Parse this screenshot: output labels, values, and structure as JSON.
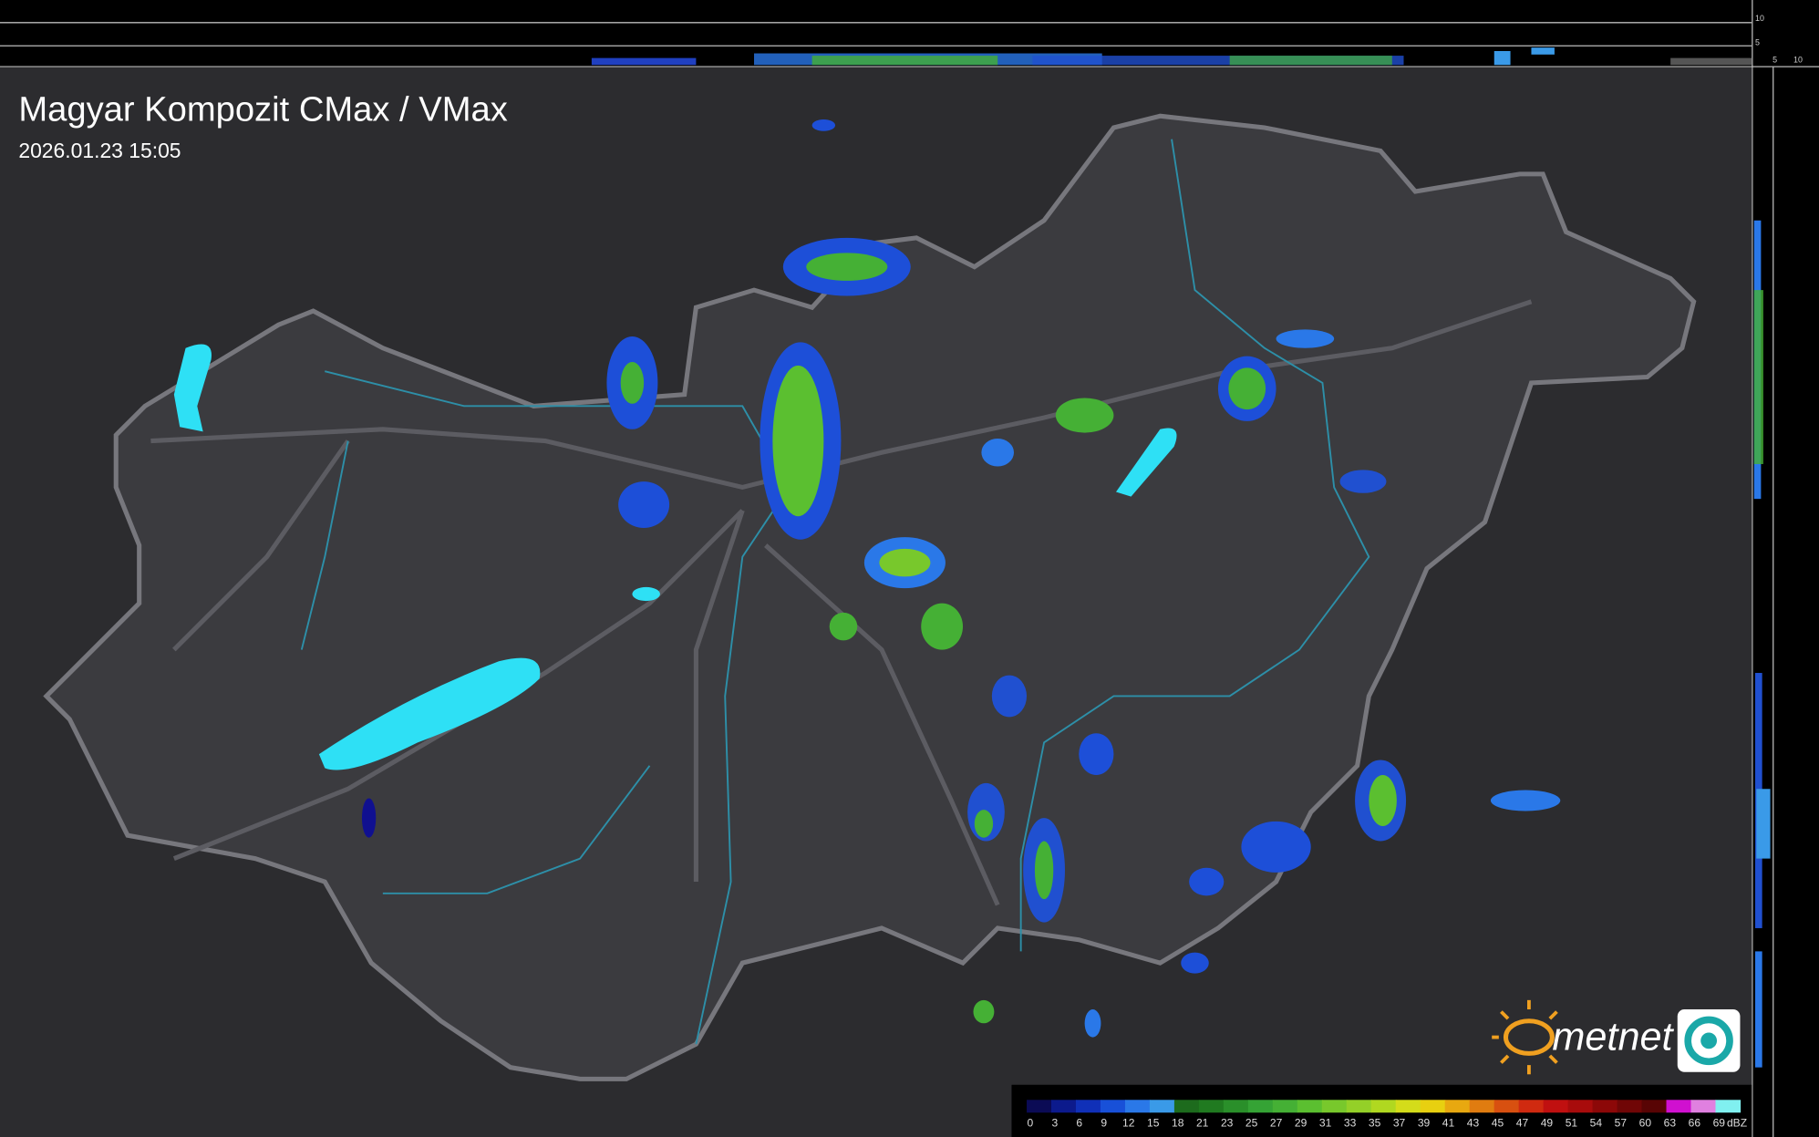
{
  "header": {
    "title": "Magyar Kompozit CMax / VMax",
    "timestamp": "2026.01.23 15:05"
  },
  "side_profile": {
    "top_labels": [
      "10",
      "5"
    ],
    "right_labels": [
      "5",
      "10"
    ]
  },
  "logo": {
    "text": "metnet"
  },
  "legend": {
    "unit": "dBZ",
    "labels": [
      "0",
      "3",
      "6",
      "9",
      "12",
      "15",
      "18",
      "21",
      "23",
      "25",
      "27",
      "29",
      "31",
      "33",
      "35",
      "37",
      "39",
      "41",
      "43",
      "45",
      "47",
      "49",
      "51",
      "54",
      "57",
      "60",
      "63",
      "66",
      "69"
    ],
    "colors": [
      "#0b0b55",
      "#0c1a8c",
      "#1030b8",
      "#1850d8",
      "#2a78e8",
      "#3a9ae8",
      "#1d6b1d",
      "#207a20",
      "#2a8f2a",
      "#35a335",
      "#45b035",
      "#5bbf30",
      "#78c82c",
      "#94d028",
      "#b0d820",
      "#d4dc1a",
      "#e8d010",
      "#e8a810",
      "#e07c10",
      "#d85010",
      "#d02a10",
      "#c01010",
      "#a80c0c",
      "#8c0808",
      "#700606",
      "#580404",
      "#d010d0",
      "#e080e0",
      "#80f0f0"
    ]
  }
}
